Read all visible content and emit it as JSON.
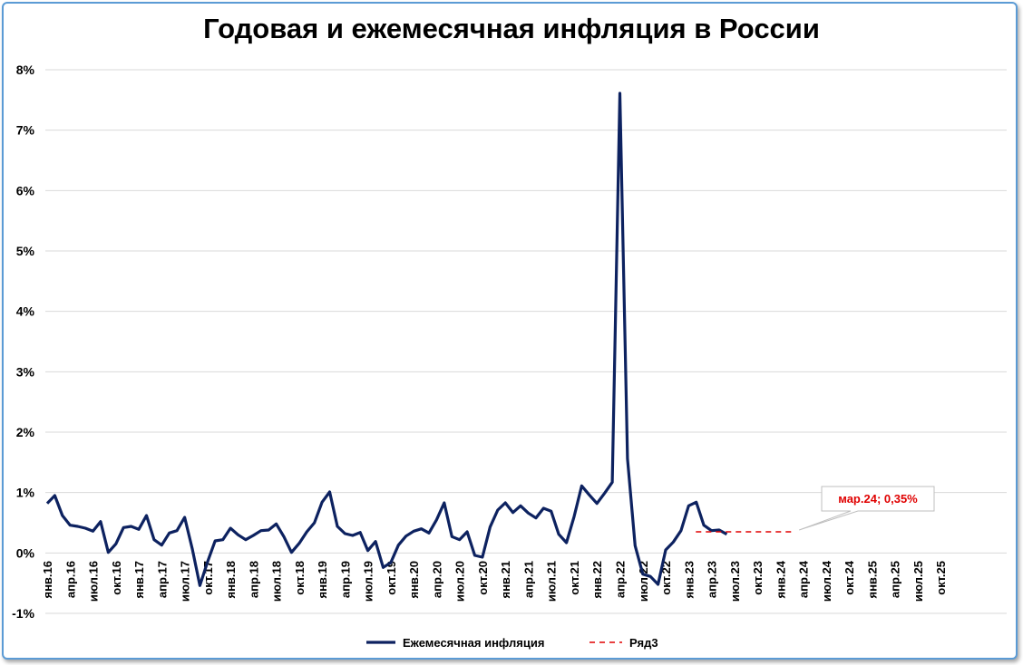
{
  "chart_data": {
    "type": "line",
    "title": "Годовая и ежемесячная инфляция в России",
    "ylim": [
      -1,
      8
    ],
    "yticks": [
      "-1%",
      "0%",
      "1%",
      "2%",
      "3%",
      "4%",
      "5%",
      "6%",
      "7%",
      "8%"
    ],
    "grid": true,
    "legend_position": "bottom",
    "xtick_labels": [
      "янв.16",
      "апр.16",
      "июл.16",
      "окт.16",
      "янв.17",
      "апр.17",
      "июл.17",
      "окт.17",
      "янв.18",
      "апр.18",
      "июл.18",
      "окт.18",
      "янв.19",
      "апр.19",
      "июл.19",
      "окт.19",
      "янв.20",
      "апр.20",
      "июл.20",
      "окт.20",
      "янв.21",
      "апр.21",
      "июл.21",
      "окт.21",
      "янв.22",
      "апр.22",
      "июл.22",
      "окт.22",
      "янв.23",
      "апр.23",
      "июл.23",
      "окт.23",
      "янв.24",
      "апр.24",
      "июл.24",
      "окт.24",
      "янв.25",
      "апр.25",
      "июл.25",
      "окт.25"
    ],
    "series": [
      {
        "name": "Ежемесячная инфляция",
        "color": "#0d2260",
        "style": "solid",
        "x_start": "янв.16",
        "values": [
          0.82,
          0.95,
          0.62,
          0.46,
          0.44,
          0.41,
          0.36,
          0.52,
          0.01,
          0.15,
          0.42,
          0.44,
          0.39,
          0.62,
          0.22,
          0.13,
          0.33,
          0.37,
          0.59,
          0.07,
          -0.54,
          -0.15,
          0.2,
          0.22,
          0.41,
          0.3,
          0.22,
          0.29,
          0.37,
          0.38,
          0.48,
          0.27,
          0.01,
          0.16,
          0.35,
          0.5,
          0.84,
          1.01,
          0.44,
          0.32,
          0.29,
          0.34,
          0.04,
          0.19,
          -0.24,
          -0.16,
          0.13,
          0.28,
          0.36,
          0.4,
          0.33,
          0.55,
          0.83,
          0.27,
          0.22,
          0.35,
          -0.04,
          -0.07,
          0.43,
          0.71,
          0.83,
          0.67,
          0.78,
          0.66,
          0.58,
          0.74,
          0.69,
          0.31,
          0.17,
          0.6,
          1.11,
          0.96,
          0.82,
          0.99,
          1.17,
          7.61,
          1.56,
          0.12,
          -0.35,
          -0.39,
          -0.52,
          0.05,
          0.18,
          0.37,
          0.78,
          0.84,
          0.46,
          0.37,
          0.38,
          0.31
        ],
        "point_labels": []
      },
      {
        "name": "Ряд3",
        "color": "#e00000",
        "style": "dashed",
        "x": [
          "янв.23",
          "мар.24"
        ],
        "values": [
          0.35,
          0.35
        ],
        "point_labels": [
          "",
          "мар.24; 0,35%"
        ]
      }
    ]
  }
}
